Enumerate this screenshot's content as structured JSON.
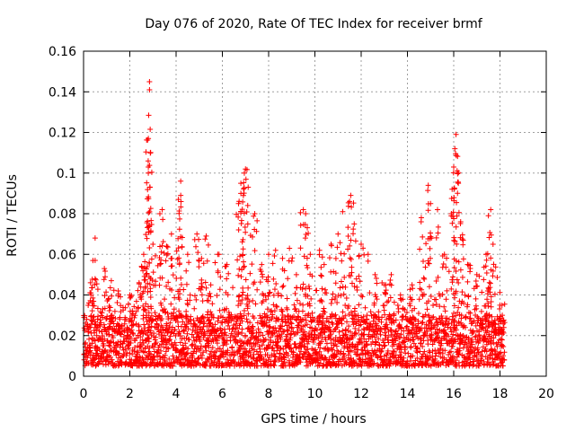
{
  "chart_data": {
    "type": "scatter",
    "title": "Day 076 of 2020, Rate Of TEC Index for receiver brmf",
    "xlabel": "GPS time / hours",
    "ylabel": "ROTI / TECUs",
    "xlim": [
      0,
      20
    ],
    "ylim": [
      0,
      0.16
    ],
    "xticks": [
      "0",
      "2",
      "4",
      "6",
      "8",
      "10",
      "12",
      "14",
      "16",
      "18",
      "20"
    ],
    "yticks": [
      "0",
      "0.02",
      "0.04",
      "0.06",
      "0.08",
      "0.1",
      "0.12",
      "0.14",
      "0.16"
    ],
    "grid": true,
    "marker": "+",
    "color": "#ff0000",
    "x_data_range": [
      0,
      18.2
    ],
    "baseline_band": [
      0.005,
      0.03
    ],
    "series": [
      {
        "points": [
          [
            0.3,
            0.046
          ],
          [
            0.5,
            0.057
          ],
          [
            0.5,
            0.068
          ],
          [
            0.9,
            0.053
          ],
          [
            1.2,
            0.047
          ],
          [
            1.5,
            0.042
          ],
          [
            2.0,
            0.04
          ],
          [
            2.4,
            0.046
          ],
          [
            2.6,
            0.06
          ],
          [
            2.7,
            0.05
          ],
          [
            2.8,
            0.1
          ],
          [
            2.8,
            0.103
          ],
          [
            2.8,
            0.117
          ],
          [
            2.85,
            0.141
          ],
          [
            2.85,
            0.145
          ],
          [
            3.0,
            0.065
          ],
          [
            3.3,
            0.08
          ],
          [
            3.4,
            0.082
          ],
          [
            3.6,
            0.064
          ],
          [
            3.8,
            0.07
          ],
          [
            4.1,
            0.087
          ],
          [
            4.2,
            0.089
          ],
          [
            4.2,
            0.096
          ],
          [
            4.5,
            0.06
          ],
          [
            4.9,
            0.07
          ],
          [
            5.1,
            0.058
          ],
          [
            5.3,
            0.069
          ],
          [
            5.5,
            0.045
          ],
          [
            5.8,
            0.06
          ],
          [
            6.2,
            0.055
          ],
          [
            6.7,
            0.085
          ],
          [
            6.8,
            0.09
          ],
          [
            6.8,
            0.095
          ],
          [
            6.95,
            0.1
          ],
          [
            7.0,
            0.102
          ],
          [
            7.1,
            0.075
          ],
          [
            7.4,
            0.08
          ],
          [
            7.7,
            0.055
          ],
          [
            8.0,
            0.06
          ],
          [
            8.3,
            0.062
          ],
          [
            8.6,
            0.058
          ],
          [
            8.9,
            0.063
          ],
          [
            9.2,
            0.05
          ],
          [
            9.5,
            0.082
          ],
          [
            9.6,
            0.08
          ],
          [
            9.8,
            0.06
          ],
          [
            10.2,
            0.062
          ],
          [
            10.4,
            0.055
          ],
          [
            10.7,
            0.065
          ],
          [
            11.0,
            0.07
          ],
          [
            11.2,
            0.081
          ],
          [
            11.5,
            0.086
          ],
          [
            11.55,
            0.089
          ],
          [
            11.7,
            0.075
          ],
          [
            12.0,
            0.065
          ],
          [
            12.3,
            0.06
          ],
          [
            12.6,
            0.05
          ],
          [
            13.0,
            0.045
          ],
          [
            13.3,
            0.05
          ],
          [
            13.7,
            0.04
          ],
          [
            14.2,
            0.045
          ],
          [
            14.6,
            0.078
          ],
          [
            14.9,
            0.094
          ],
          [
            15.0,
            0.085
          ],
          [
            15.3,
            0.082
          ],
          [
            15.6,
            0.06
          ],
          [
            15.9,
            0.08
          ],
          [
            16.0,
            0.103
          ],
          [
            16.05,
            0.112
          ],
          [
            16.1,
            0.119
          ],
          [
            16.2,
            0.095
          ],
          [
            16.3,
            0.076
          ],
          [
            16.6,
            0.055
          ],
          [
            17.0,
            0.05
          ],
          [
            17.4,
            0.06
          ],
          [
            17.5,
            0.079
          ],
          [
            17.6,
            0.082
          ],
          [
            17.7,
            0.065
          ],
          [
            18.0,
            0.035
          ],
          [
            18.1,
            0.03
          ]
        ]
      }
    ]
  }
}
